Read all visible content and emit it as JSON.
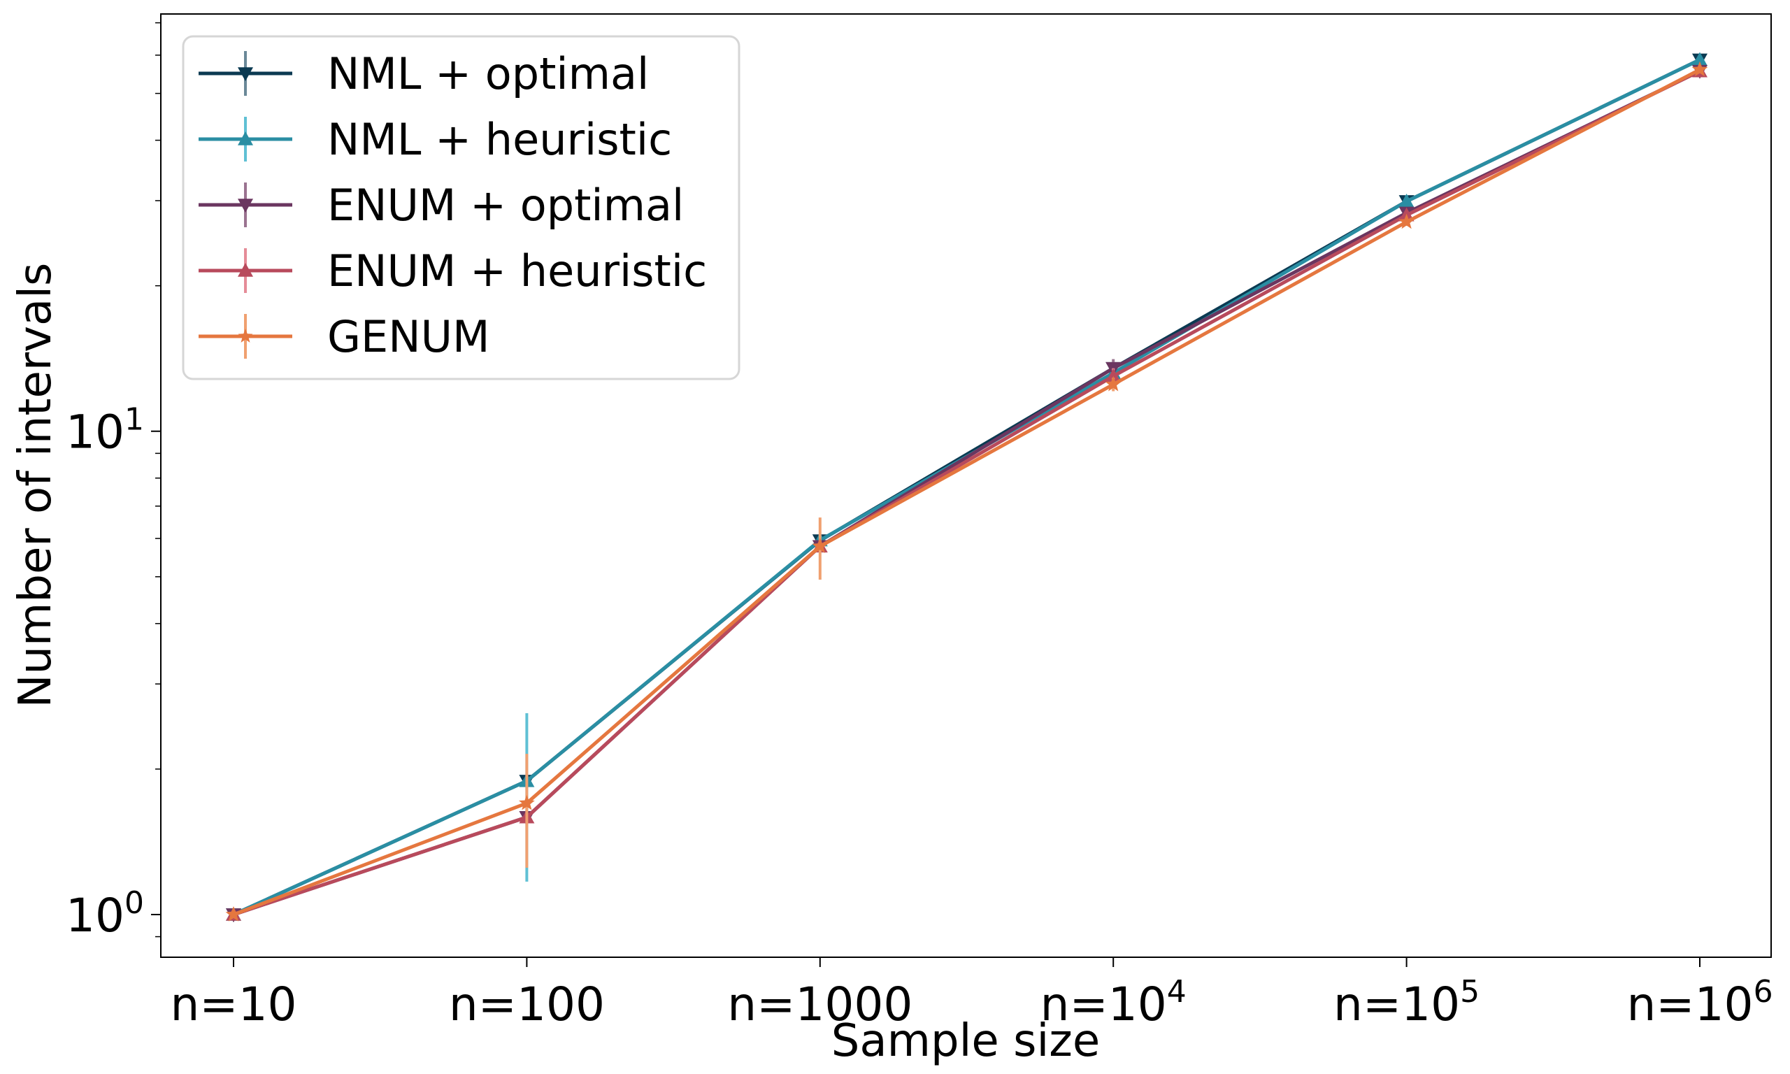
{
  "chart_data": {
    "type": "line",
    "title": "",
    "xlabel": "Sample size",
    "ylabel": "Number of intervals",
    "yscale": "log",
    "ylim": [
      0.816,
      73
    ],
    "x_tick_labels": [
      {
        "base": "n=10",
        "exp": ""
      },
      {
        "base": "n=100",
        "exp": ""
      },
      {
        "base": "n=1000",
        "exp": ""
      },
      {
        "base": "n=10",
        "exp": "4"
      },
      {
        "base": "n=10",
        "exp": "5"
      },
      {
        "base": "n=10",
        "exp": "6"
      }
    ],
    "x": [
      10,
      100,
      1000,
      10000,
      100000,
      1000000
    ],
    "y_ticks": [
      {
        "value": 1,
        "base": "10",
        "exp": "0"
      },
      {
        "value": 10,
        "base": "10",
        "exp": "1"
      }
    ],
    "grid": false,
    "legend_position": "top-left",
    "series": [
      {
        "name": "NML + optimal",
        "color": "#0b3a52",
        "err_color": "#6a8898",
        "marker": "triangle-down",
        "values": [
          1.0,
          1.89,
          5.94,
          13.5,
          29.9,
          58.7
        ],
        "errors": [
          0,
          0.05,
          0.05,
          0.3,
          0.8,
          0.4
        ]
      },
      {
        "name": "NML + heuristic",
        "color": "#2a8ea3",
        "err_color": "#5fc0d4",
        "marker": "triangle-up",
        "values": [
          1.0,
          1.89,
          5.95,
          13.2,
          29.9,
          58.7
        ],
        "errors": [
          0,
          0.72,
          0.1,
          0.3,
          0.9,
          0.4
        ]
      },
      {
        "name": "ENUM + optimal",
        "color": "#6b3660",
        "err_color": "#9a7390",
        "marker": "triangle-down",
        "values": [
          1.0,
          1.59,
          5.78,
          13.5,
          28.3,
          55.6
        ],
        "errors": [
          0,
          0.05,
          0.1,
          0.6,
          0.6,
          0.4
        ]
      },
      {
        "name": "ENUM + heuristic",
        "color": "#b84a5c",
        "err_color": "#e58c98",
        "marker": "triangle-up",
        "values": [
          1.0,
          1.59,
          5.78,
          13.0,
          28.0,
          55.6
        ],
        "errors": [
          0,
          0.05,
          0.1,
          0.5,
          0.6,
          0.4
        ]
      },
      {
        "name": "GENUM",
        "color": "#e5773f",
        "err_color": "#f0a070",
        "marker": "star",
        "values": [
          1.0,
          1.7,
          5.78,
          12.5,
          27.1,
          56.0
        ],
        "errors": [
          0,
          0.45,
          0.85,
          0.4,
          0.5,
          0.4
        ]
      }
    ]
  }
}
